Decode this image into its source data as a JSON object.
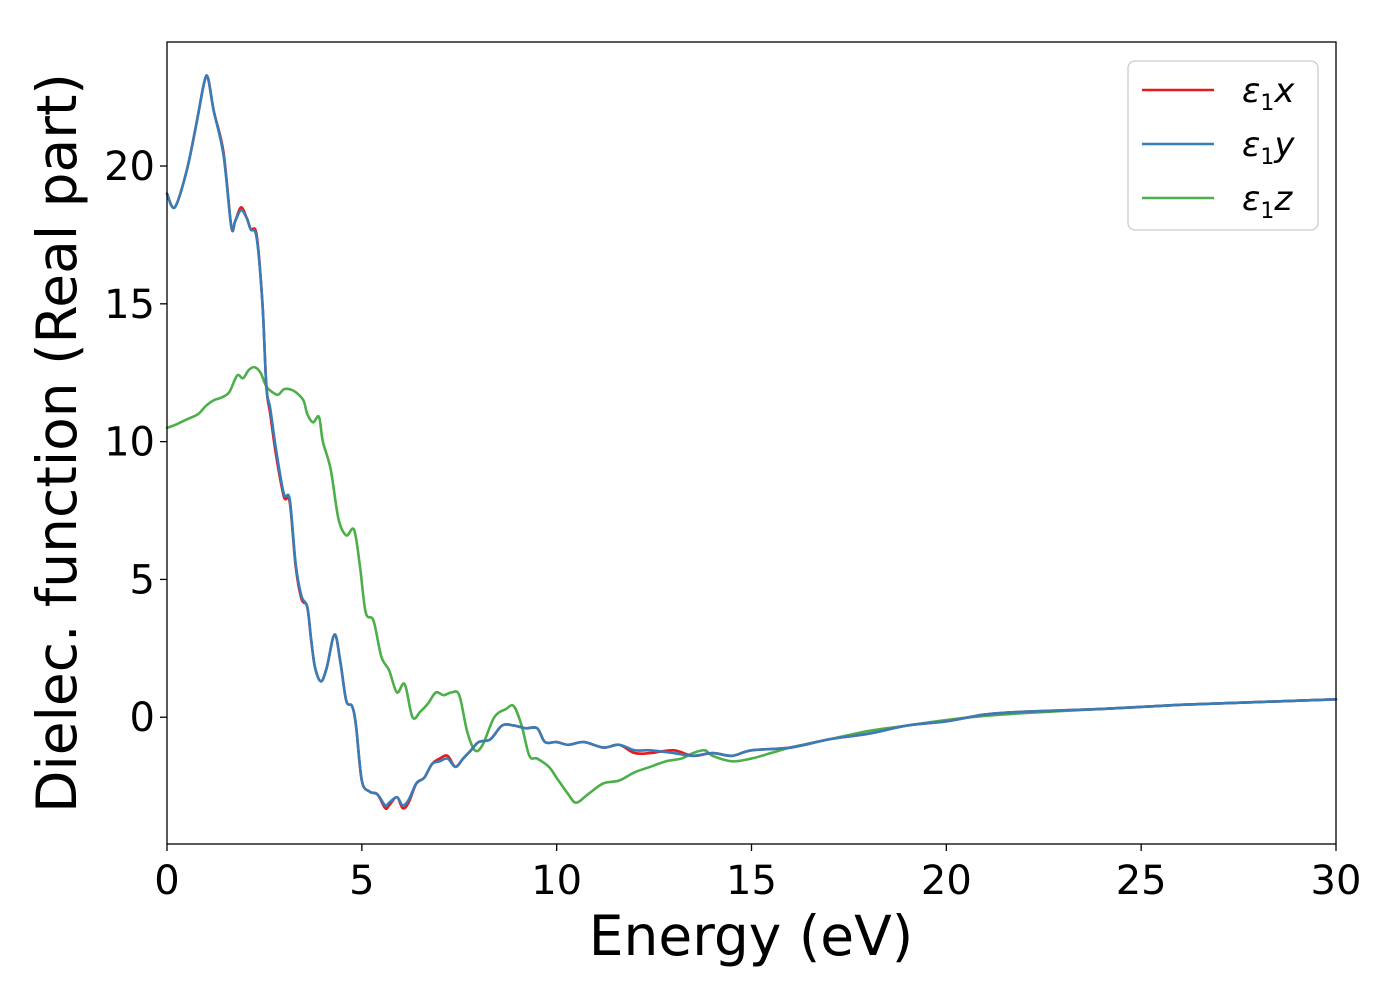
{
  "chart_data": {
    "type": "line",
    "xlabel": "Energy (eV)",
    "ylabel": "Dielec. function (Real part)",
    "xlim": [
      0,
      30
    ],
    "ylim": [
      -4.6,
      24.5
    ],
    "xticks": [
      0,
      5,
      10,
      15,
      20,
      25,
      30
    ],
    "yticks": [
      0,
      5,
      10,
      15,
      20
    ],
    "grid": false,
    "legend_position": "top-right",
    "series": [
      {
        "name": "ε1x",
        "symbol": "ε",
        "subscript": "1",
        "component": "x",
        "color": "#e41a1c",
        "x": [
          0,
          0.2,
          0.5,
          0.75,
          0.95,
          1.05,
          1.2,
          1.45,
          1.65,
          1.75,
          1.9,
          2.05,
          2.15,
          2.3,
          2.45,
          2.55,
          2.65,
          2.8,
          3.0,
          3.15,
          3.3,
          3.45,
          3.6,
          3.7,
          3.8,
          3.95,
          4.1,
          4.3,
          4.45,
          4.6,
          4.75,
          4.85,
          5.0,
          5.2,
          5.4,
          5.6,
          5.7,
          5.9,
          6.05,
          6.2,
          6.4,
          6.6,
          6.8,
          7.0,
          7.2,
          7.4,
          7.6,
          7.8,
          8.0,
          8.3,
          8.6,
          8.9,
          9.2,
          9.5,
          9.7,
          10.0,
          10.3,
          10.7,
          11.2,
          11.6,
          12.0,
          12.4,
          13.0,
          13.5,
          14.0,
          14.5,
          15.0,
          16.0,
          17.0,
          18.0,
          19.0,
          20.0,
          21.0,
          22.0,
          24.0,
          26.0,
          28.0,
          30.0
        ],
        "y": [
          19.0,
          18.5,
          19.8,
          21.5,
          23.0,
          23.2,
          22.0,
          20.5,
          17.8,
          18.0,
          18.5,
          18.1,
          17.7,
          17.5,
          15.0,
          12.0,
          11.0,
          9.5,
          8.0,
          7.8,
          5.5,
          4.3,
          4.0,
          2.8,
          1.8,
          1.3,
          1.8,
          3.0,
          2.0,
          0.6,
          0.4,
          -0.3,
          -2.3,
          -2.7,
          -2.8,
          -3.3,
          -3.2,
          -2.9,
          -3.3,
          -3.1,
          -2.4,
          -2.2,
          -1.7,
          -1.5,
          -1.4,
          -1.8,
          -1.5,
          -1.2,
          -0.9,
          -0.8,
          -0.3,
          -0.3,
          -0.4,
          -0.4,
          -0.9,
          -0.9,
          -1.0,
          -0.9,
          -1.1,
          -1.0,
          -1.3,
          -1.3,
          -1.2,
          -1.4,
          -1.3,
          -1.4,
          -1.2,
          -1.1,
          -0.8,
          -0.6,
          -0.3,
          -0.15,
          0.1,
          0.2,
          0.3,
          0.45,
          0.55,
          0.65
        ]
      },
      {
        "name": "ε1y",
        "symbol": "ε",
        "subscript": "1",
        "component": "y",
        "color": "#377eb8",
        "x": [
          0,
          0.2,
          0.5,
          0.75,
          0.95,
          1.05,
          1.2,
          1.45,
          1.65,
          1.75,
          1.9,
          2.05,
          2.15,
          2.3,
          2.45,
          2.55,
          2.65,
          2.8,
          3.0,
          3.15,
          3.3,
          3.45,
          3.6,
          3.7,
          3.8,
          3.95,
          4.1,
          4.3,
          4.45,
          4.6,
          4.75,
          4.85,
          5.0,
          5.2,
          5.4,
          5.6,
          5.7,
          5.9,
          6.05,
          6.2,
          6.4,
          6.6,
          6.8,
          7.0,
          7.2,
          7.4,
          7.6,
          7.8,
          8.0,
          8.3,
          8.6,
          8.9,
          9.2,
          9.5,
          9.7,
          10.0,
          10.3,
          10.7,
          11.2,
          11.6,
          12.0,
          12.4,
          13.0,
          13.5,
          14.0,
          14.5,
          15.0,
          16.0,
          17.0,
          18.0,
          19.0,
          20.0,
          21.0,
          22.0,
          24.0,
          26.0,
          28.0,
          30.0
        ],
        "y": [
          19.0,
          18.5,
          19.8,
          21.5,
          23.0,
          23.2,
          22.0,
          20.4,
          17.8,
          18.0,
          18.4,
          18.1,
          17.7,
          17.4,
          15.0,
          12.0,
          11.2,
          9.7,
          8.1,
          7.9,
          5.6,
          4.4,
          4.0,
          2.8,
          1.8,
          1.3,
          1.8,
          3.0,
          2.0,
          0.6,
          0.4,
          -0.3,
          -2.3,
          -2.7,
          -2.8,
          -3.2,
          -3.1,
          -2.9,
          -3.2,
          -3.0,
          -2.4,
          -2.2,
          -1.7,
          -1.6,
          -1.5,
          -1.8,
          -1.5,
          -1.2,
          -0.9,
          -0.8,
          -0.3,
          -0.3,
          -0.4,
          -0.4,
          -0.9,
          -0.9,
          -1.0,
          -0.9,
          -1.1,
          -1.0,
          -1.2,
          -1.2,
          -1.3,
          -1.4,
          -1.3,
          -1.4,
          -1.2,
          -1.1,
          -0.8,
          -0.6,
          -0.3,
          -0.15,
          0.1,
          0.2,
          0.3,
          0.45,
          0.55,
          0.65
        ]
      },
      {
        "name": "ε1z",
        "symbol": "ε",
        "subscript": "1",
        "component": "z",
        "color": "#4daf4a",
        "x": [
          0,
          0.2,
          0.5,
          0.8,
          1.0,
          1.2,
          1.4,
          1.6,
          1.8,
          1.95,
          2.1,
          2.25,
          2.4,
          2.55,
          2.7,
          2.85,
          3.0,
          3.15,
          3.3,
          3.5,
          3.6,
          3.75,
          3.9,
          4.0,
          4.2,
          4.4,
          4.6,
          4.8,
          4.95,
          5.1,
          5.3,
          5.5,
          5.7,
          5.9,
          6.1,
          6.3,
          6.5,
          6.7,
          6.9,
          7.1,
          7.3,
          7.5,
          7.7,
          7.9,
          8.1,
          8.4,
          8.7,
          8.9,
          9.1,
          9.3,
          9.5,
          9.8,
          10.0,
          10.3,
          10.5,
          10.8,
          11.2,
          11.6,
          12.0,
          12.4,
          12.8,
          13.2,
          13.5,
          13.8,
          14.0,
          14.5,
          15.0,
          15.5,
          16.0,
          17.0,
          18.0,
          19.0,
          20.0,
          21.0,
          22.0,
          24.0,
          26.0,
          28.0,
          30.0
        ],
        "y": [
          10.5,
          10.6,
          10.8,
          11.0,
          11.3,
          11.5,
          11.6,
          11.8,
          12.4,
          12.3,
          12.6,
          12.7,
          12.5,
          12.0,
          11.8,
          11.7,
          11.9,
          11.9,
          11.8,
          11.5,
          11.0,
          10.7,
          10.9,
          10.0,
          9.0,
          7.2,
          6.6,
          6.8,
          5.5,
          3.8,
          3.5,
          2.2,
          1.7,
          0.9,
          1.2,
          0.0,
          0.2,
          0.5,
          0.9,
          0.8,
          0.9,
          0.8,
          -0.5,
          -1.2,
          -1.0,
          0.0,
          0.3,
          0.4,
          -0.3,
          -1.4,
          -1.5,
          -1.8,
          -2.2,
          -2.8,
          -3.1,
          -2.8,
          -2.4,
          -2.3,
          -2.0,
          -1.8,
          -1.6,
          -1.5,
          -1.3,
          -1.2,
          -1.4,
          -1.6,
          -1.5,
          -1.3,
          -1.1,
          -0.8,
          -0.5,
          -0.3,
          -0.1,
          0.05,
          0.15,
          0.3,
          0.45,
          0.55,
          0.65
        ]
      }
    ]
  }
}
